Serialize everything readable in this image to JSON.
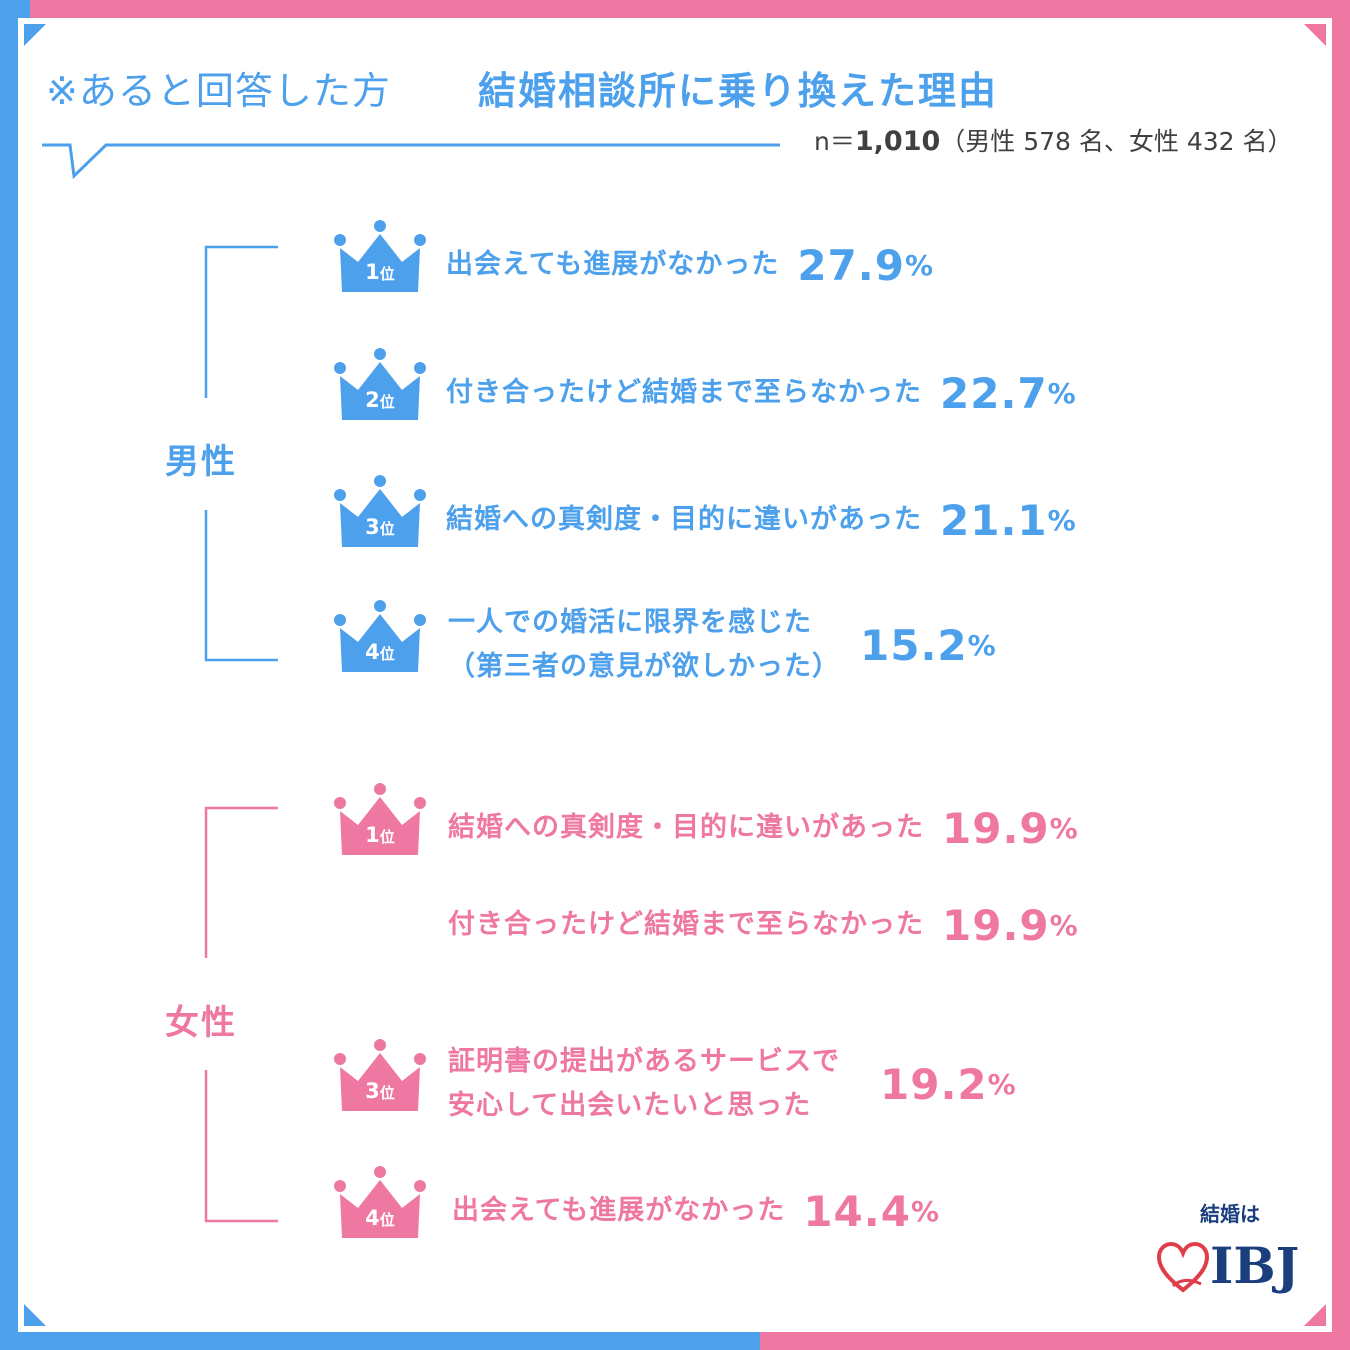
{
  "header": {
    "prefix": "※あると回答した方",
    "title": "結婚相談所に乗り換えた理由",
    "sample_prefix": "n＝",
    "sample_n": "1,010",
    "sample_detail": "（男性 578 名、女性 432 名）"
  },
  "colors": {
    "male": "#4da0ec",
    "female": "#ef78a3",
    "logo": "#1b3f7e"
  },
  "chart_data": {
    "type": "table",
    "unit": "%",
    "groups": [
      {
        "name": "男性",
        "items": [
          {
            "rank": "1",
            "rank_unit": "位",
            "label_lines": [
              "出会えても進展がなかった"
            ],
            "value": "27.9"
          },
          {
            "rank": "2",
            "rank_unit": "位",
            "label_lines": [
              "付き合ったけど結婚まで至らなかった"
            ],
            "value": "22.7"
          },
          {
            "rank": "3",
            "rank_unit": "位",
            "label_lines": [
              "結婚への真剣度・目的に違いがあった"
            ],
            "value": "21.1"
          },
          {
            "rank": "4",
            "rank_unit": "位",
            "label_lines": [
              "一人での婚活に限界を感じた",
              "（第三者の意見が欲しかった）"
            ],
            "value": "15.2"
          }
        ]
      },
      {
        "name": "女性",
        "items": [
          {
            "rank": "1",
            "rank_unit": "位",
            "label_lines": [
              "結婚への真剣度・目的に違いがあった"
            ],
            "value": "19.9"
          },
          {
            "rank": "",
            "rank_unit": "",
            "label_lines": [
              "付き合ったけど結婚まで至らなかった"
            ],
            "value": "19.9"
          },
          {
            "rank": "3",
            "rank_unit": "位",
            "label_lines": [
              "証明書の提出があるサービスで",
              "安心して出会いたいと思った"
            ],
            "value": "19.2"
          },
          {
            "rank": "4",
            "rank_unit": "位",
            "label_lines": [
              "出会えても進展がなかった"
            ],
            "value": "14.4"
          }
        ]
      }
    ]
  },
  "logo": {
    "top": "結婚は",
    "main": "IBJ",
    "icon": "heart-icon"
  }
}
